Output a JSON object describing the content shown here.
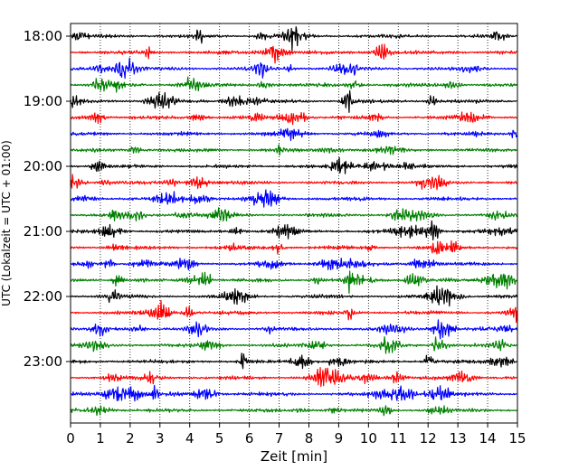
{
  "chart_data": {
    "type": "line",
    "title": "",
    "xlabel": "Zeit  [min]",
    "ylabel": "UTC (Lokalzeit = UTC + 01:00)",
    "xlim": [
      0,
      15
    ],
    "x_ticks": [
      "0",
      "1",
      "2",
      "3",
      "4",
      "5",
      "6",
      "7",
      "8",
      "9",
      "10",
      "11",
      "12",
      "13",
      "14",
      "15"
    ],
    "y_ticks": [
      "18:00",
      "19:00",
      "20:00",
      "21:00",
      "22:00",
      "23:00"
    ],
    "grid": "vertical dotted lines at each minute",
    "trace_interval_min": 15,
    "trace_colors": [
      "#000000",
      "#ff0000",
      "#0000ff",
      "#008000"
    ],
    "series": [
      {
        "start": "18:00",
        "color": "#000000"
      },
      {
        "start": "18:15",
        "color": "#ff0000"
      },
      {
        "start": "18:30",
        "color": "#0000ff"
      },
      {
        "start": "18:45",
        "color": "#008000"
      },
      {
        "start": "19:00",
        "color": "#000000"
      },
      {
        "start": "19:15",
        "color": "#ff0000"
      },
      {
        "start": "19:30",
        "color": "#0000ff"
      },
      {
        "start": "19:45",
        "color": "#008000"
      },
      {
        "start": "20:00",
        "color": "#000000"
      },
      {
        "start": "20:15",
        "color": "#ff0000"
      },
      {
        "start": "20:30",
        "color": "#0000ff"
      },
      {
        "start": "20:45",
        "color": "#008000"
      },
      {
        "start": "21:00",
        "color": "#000000"
      },
      {
        "start": "21:15",
        "color": "#ff0000"
      },
      {
        "start": "21:30",
        "color": "#0000ff"
      },
      {
        "start": "21:45",
        "color": "#008000"
      },
      {
        "start": "22:00",
        "color": "#000000"
      },
      {
        "start": "22:15",
        "color": "#ff0000"
      },
      {
        "start": "22:30",
        "color": "#0000ff"
      },
      {
        "start": "22:45",
        "color": "#008000"
      },
      {
        "start": "23:00",
        "color": "#000000"
      },
      {
        "start": "23:15",
        "color": "#ff0000"
      },
      {
        "start": "23:30",
        "color": "#0000ff"
      },
      {
        "start": "23:45",
        "color": "#008000"
      }
    ]
  }
}
